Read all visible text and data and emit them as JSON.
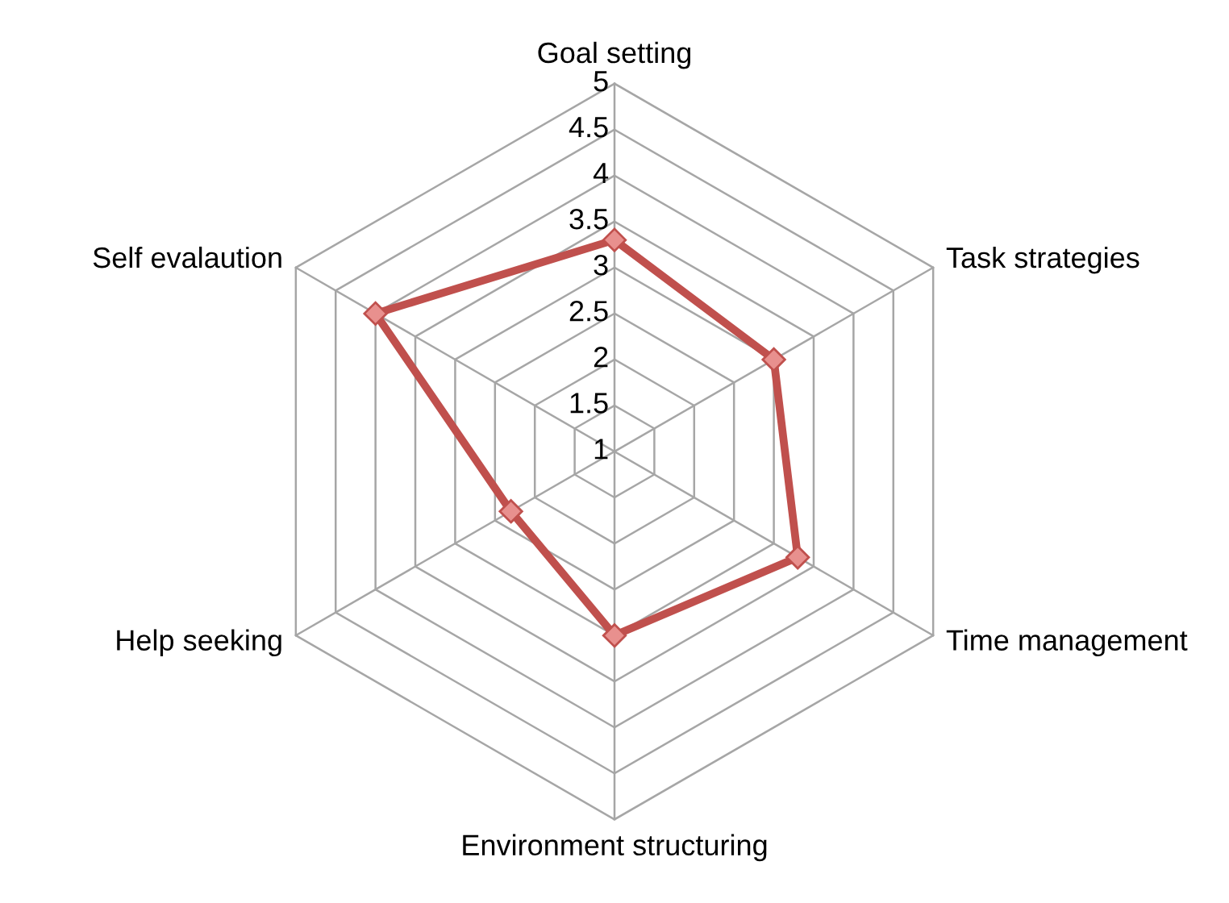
{
  "chart_data": {
    "type": "radar",
    "categories": [
      "Goal setting",
      "Task strategies",
      "Time management",
      "Environment structuring",
      "Help seeking",
      "Self evalaution"
    ],
    "series": [
      {
        "color": "#c0504d",
        "values": [
          3.3,
          3.0,
          3.3,
          3.0,
          2.3,
          4.0
        ]
      }
    ],
    "ylim": [
      1,
      5
    ],
    "yticks": [
      1,
      1.5,
      2,
      2.5,
      3,
      3.5,
      4,
      4.5,
      5
    ],
    "grid": true,
    "marker": "diamond",
    "legend": false
  }
}
